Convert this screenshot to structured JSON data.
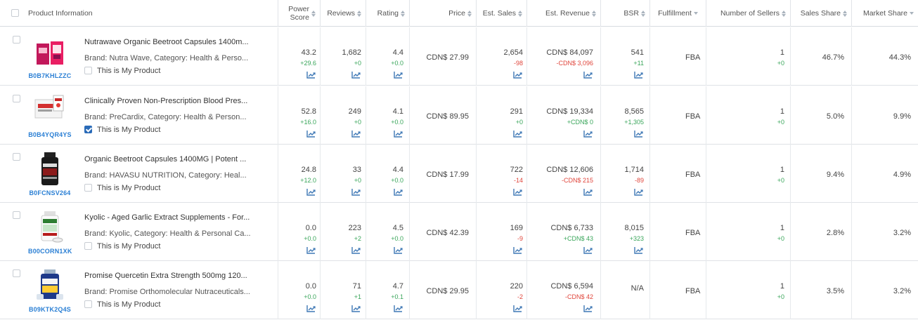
{
  "colors": {
    "link": "#2a7fd4",
    "positive": "#3aa65b",
    "negative": "#e0463c",
    "trend_icon": "#3f78b5"
  },
  "header": {
    "product_information": "Product Information",
    "power_score_1": "Power",
    "power_score_2": "Score",
    "reviews": "Reviews",
    "rating": "Rating",
    "price": "Price",
    "est_sales": "Est. Sales",
    "est_revenue": "Est. Revenue",
    "bsr": "BSR",
    "fulfillment": "Fulfillment",
    "number_of_sellers": "Number of Sellers",
    "sales_share": "Sales Share",
    "market_share": "Market Share"
  },
  "rows": [
    {
      "asin": "B0B7KHLZZC",
      "title": "Nutrawave Organic Beetroot Capsules 1400m...",
      "brand": "Brand: Nutra Wave,  Category: Health & Perso...",
      "my_product_label": "This is My Product",
      "is_my_product": false,
      "thumb_icon": "beetroot-bottle-icon",
      "power_score": "43.2",
      "power_delta": "+29.6",
      "reviews": "1,682",
      "reviews_delta": "+0",
      "rating": "4.4",
      "rating_delta": "+0.0",
      "price": "CDN$ 27.99",
      "est_sales": "2,654",
      "est_sales_delta": "-98",
      "est_revenue": "CDN$ 84,097",
      "est_revenue_delta": "-CDN$ 3,096",
      "bsr": "541",
      "bsr_delta": "+11",
      "fulfillment": "FBA",
      "sellers": "1",
      "sellers_delta": "+0",
      "sales_share": "46.7%",
      "market_share": "44.3%"
    },
    {
      "asin": "B0B4YQR4YS",
      "title": "Clinically Proven Non-Prescription Blood Pres...",
      "brand": "Brand: PreCardix,  Category: Health & Person...",
      "my_product_label": "This is My Product",
      "is_my_product": true,
      "thumb_icon": "precardix-box-icon",
      "power_score": "52.8",
      "power_delta": "+16.0",
      "reviews": "249",
      "reviews_delta": "+0",
      "rating": "4.1",
      "rating_delta": "+0.0",
      "price": "CDN$ 89.95",
      "est_sales": "291",
      "est_sales_delta": "+0",
      "est_revenue": "CDN$ 19,334",
      "est_revenue_delta": "+CDN$ 0",
      "bsr": "8,565",
      "bsr_delta": "+1,305",
      "fulfillment": "FBA",
      "sellers": "1",
      "sellers_delta": "+0",
      "sales_share": "5.0%",
      "market_share": "9.9%"
    },
    {
      "asin": "B0FCNSV264",
      "title": "Organic Beetroot Capsules 1400MG | Potent ...",
      "brand": "Brand: HAVASU NUTRITION,  Category: Heal...",
      "my_product_label": "This is My Product",
      "is_my_product": false,
      "thumb_icon": "black-bottle-icon",
      "power_score": "24.8",
      "power_delta": "+12.0",
      "reviews": "33",
      "reviews_delta": "+0",
      "rating": "4.4",
      "rating_delta": "+0.0",
      "price": "CDN$ 17.99",
      "est_sales": "722",
      "est_sales_delta": "-14",
      "est_revenue": "CDN$ 12,606",
      "est_revenue_delta": "-CDN$ 215",
      "bsr": "1,714",
      "bsr_delta": "-89",
      "fulfillment": "FBA",
      "sellers": "1",
      "sellers_delta": "+0",
      "sales_share": "9.4%",
      "market_share": "4.9%"
    },
    {
      "asin": "B00CORN1XK",
      "title": "Kyolic - Aged Garlic Extract Supplements - For...",
      "brand": "Brand: Kyolic,  Category: Health & Personal Ca...",
      "my_product_label": "This is My Product",
      "is_my_product": false,
      "thumb_icon": "white-bottle-icon",
      "power_score": "0.0",
      "power_delta": "+0.0",
      "reviews": "223",
      "reviews_delta": "+2",
      "rating": "4.5",
      "rating_delta": "+0.0",
      "price": "CDN$ 42.39",
      "est_sales": "169",
      "est_sales_delta": "-9",
      "est_revenue": "CDN$ 6,733",
      "est_revenue_delta": "+CDN$ 43",
      "bsr": "8,015",
      "bsr_delta": "+323",
      "fulfillment": "FBA",
      "sellers": "1",
      "sellers_delta": "+0",
      "sales_share": "2.8%",
      "market_share": "3.2%"
    },
    {
      "asin": "B09KTK2Q4S",
      "title": "Promise Quercetin Extra Strength 500mg 120...",
      "brand": "Brand: Promise Orthomolecular Nutraceuticals...",
      "my_product_label": "This is My Product",
      "is_my_product": false,
      "thumb_icon": "blue-bottle-icon",
      "power_score": "0.0",
      "power_delta": "+0.0",
      "reviews": "71",
      "reviews_delta": "+1",
      "rating": "4.7",
      "rating_delta": "+0.1",
      "price": "CDN$ 29.95",
      "est_sales": "220",
      "est_sales_delta": "-2",
      "est_revenue": "CDN$ 6,594",
      "est_revenue_delta": "-CDN$ 42",
      "bsr": "N/A",
      "bsr_delta": "",
      "fulfillment": "FBA",
      "sellers": "1",
      "sellers_delta": "+0",
      "sales_share": "3.5%",
      "market_share": "3.2%"
    }
  ]
}
